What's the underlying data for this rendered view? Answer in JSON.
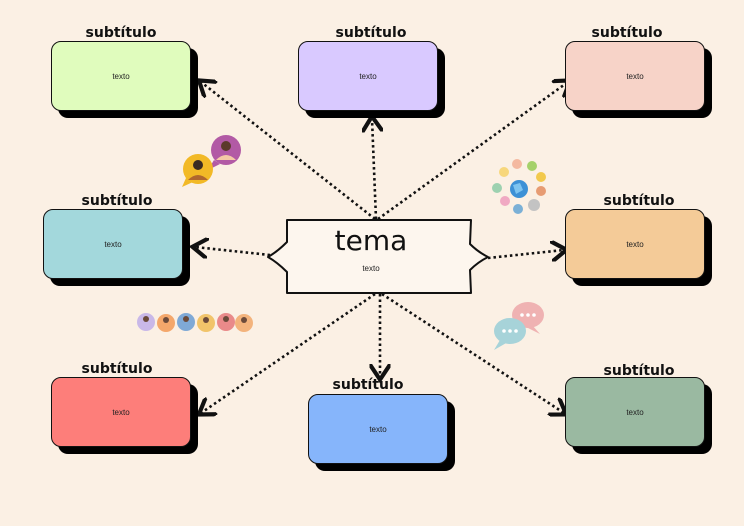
{
  "center": {
    "title": "tema",
    "text": "texto"
  },
  "nodes": [
    {
      "subtitle": "subtítulo",
      "text": "texto",
      "color": "#e0fcbd"
    },
    {
      "subtitle": "subtítulo",
      "text": "texto",
      "color": "#d9c9ff"
    },
    {
      "subtitle": "subtítulo",
      "text": "texto",
      "color": "#f7d3c8"
    },
    {
      "subtitle": "subtítulo",
      "text": "texto",
      "color": "#a3d8dc"
    },
    {
      "subtitle": "subtítulo",
      "text": "texto",
      "color": "#f4cb98"
    },
    {
      "subtitle": "subtítulo",
      "text": "texto",
      "color": "#fd7e7a"
    },
    {
      "subtitle": "subtítulo",
      "text": "texto",
      "color": "#86b5fb"
    },
    {
      "subtitle": "subtítulo",
      "text": "texto",
      "color": "#9ab9a1"
    }
  ],
  "illustrations": [
    "chat-avatars-icon",
    "globe-network-icon",
    "people-row-icon",
    "speech-bubbles-icon"
  ]
}
